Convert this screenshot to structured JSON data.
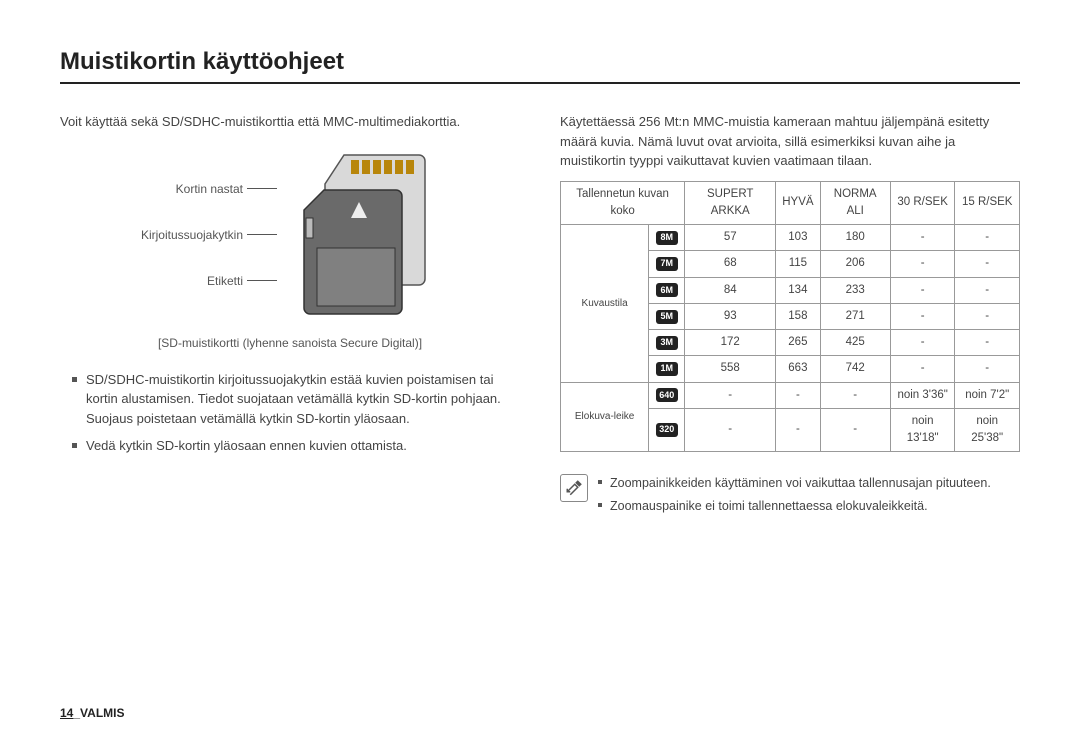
{
  "title": "Muistikortin käyttöohjeet",
  "left": {
    "intro": "Voit käyttää sekä SD/SDHC-muistikorttia että MMC-multimediakorttia.",
    "labels": {
      "pins": "Kortin nastat",
      "switch": "Kirjoitussuojakytkin",
      "label": "Etiketti"
    },
    "caption": "[SD-muistikortti (lyhenne sanoista Secure Digital)]",
    "bullets": [
      "SD/SDHC-muistikortin kirjoitussuojakytkin estää kuvien poistamisen tai kortin alustamisen. Tiedot suojataan vetämällä kytkin SD-kortin pohjaan. Suojaus poistetaan vetämällä kytkin SD-kortin yläosaan.",
      "Vedä kytkin SD-kortin yläosaan ennen kuvien ottamista."
    ]
  },
  "right": {
    "intro": "Käytettäessä 256 Mt:n MMC-muistia kameraan mahtuu jäljempänä esitetty määrä kuvia. Nämä luvut ovat arvioita, sillä esimerkiksi kuvan aihe ja muistikortin tyyppi vaikuttavat kuvien vaatimaan tilaan.",
    "table": {
      "headers": {
        "size": "Tallennetun kuvan koko",
        "superfine": "SUPERT ARKKA",
        "fine": "HYVÄ",
        "normal": "NORMA ALI",
        "r30": "30 R/SEK",
        "r15": "15 R/SEK"
      },
      "group_still": "Kuvaustila",
      "group_movie": "Elokuva-leike",
      "still_rows": [
        {
          "badge": "8M",
          "vals": [
            "57",
            "103",
            "180",
            "-",
            "-"
          ]
        },
        {
          "badge": "7M",
          "vals": [
            "68",
            "115",
            "206",
            "-",
            "-"
          ]
        },
        {
          "badge": "6M",
          "vals": [
            "84",
            "134",
            "233",
            "-",
            "-"
          ]
        },
        {
          "badge": "5M",
          "vals": [
            "93",
            "158",
            "271",
            "-",
            "-"
          ]
        },
        {
          "badge": "3M",
          "vals": [
            "172",
            "265",
            "425",
            "-",
            "-"
          ]
        },
        {
          "badge": "1M",
          "vals": [
            "558",
            "663",
            "742",
            "-",
            "-"
          ]
        }
      ],
      "movie_rows": [
        {
          "badge": "640",
          "vals": [
            "-",
            "-",
            "-",
            "noin 3'36\"",
            "noin 7'2\""
          ]
        },
        {
          "badge": "320",
          "vals": [
            "-",
            "-",
            "-",
            "noin 13'18\"",
            "noin 25'38\""
          ]
        }
      ]
    },
    "notes": [
      "Zoompainikkeiden käyttäminen voi vaikuttaa tallennusajan pituuteen.",
      "Zoomauspainike ei toimi tallennettaessa elokuvaleikkeitä."
    ]
  },
  "footer": {
    "page": "14",
    "section": "VALMIS"
  },
  "colors": {
    "text": "#333333",
    "border": "#999999",
    "badge_bg": "#222222"
  }
}
